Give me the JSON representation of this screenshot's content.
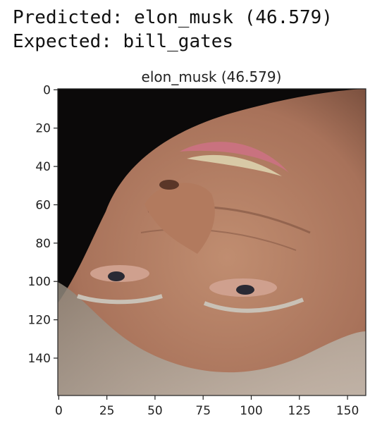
{
  "output": {
    "predicted_line": "Predicted: elon_musk (46.579)",
    "expected_line": "Expected: bill_gates"
  },
  "chart_data": {
    "type": "image",
    "title": "elon_musk (46.579)",
    "image_description": "upside-down close-up photograph of an older man's face against a black background",
    "xlim": [
      -0.5,
      159.5
    ],
    "ylim": [
      159.5,
      -0.5
    ],
    "x_ticks": [
      0,
      25,
      50,
      75,
      100,
      125,
      150
    ],
    "y_ticks": [
      0,
      20,
      40,
      60,
      80,
      100,
      120,
      140
    ],
    "xlabel": "",
    "ylabel": ""
  },
  "colors": {
    "background": "#0b0909",
    "skin": "#b88468",
    "skin_dark": "#7d5240",
    "lips": "#c9727f",
    "teeth": "#d8c9a6",
    "hair": "#a59b8f"
  }
}
